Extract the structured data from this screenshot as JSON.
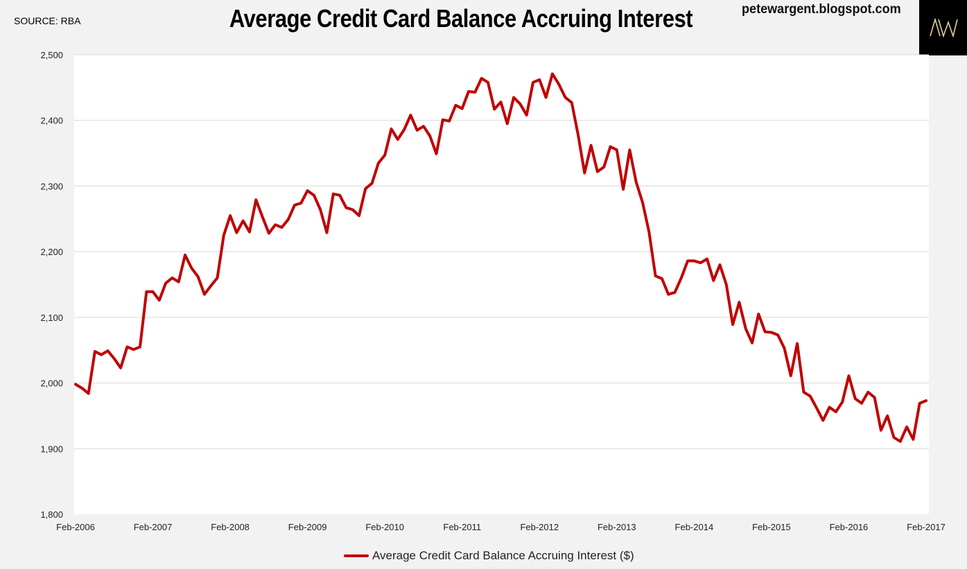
{
  "header": {
    "source": "SOURCE: RBA",
    "title": "Average Credit Card Balance Accruing Interest",
    "blog": "petewargent.blogspot.com",
    "logo_text": "AW"
  },
  "colors": {
    "series": "#c00000",
    "gridline": "#d9d9d9",
    "plot_bg": "#ffffff",
    "page_bg": "#f2f2f2",
    "logo_bg": "#000000",
    "logo_fg": "#e6cf96"
  },
  "chart_data": {
    "type": "line",
    "title": "Average Credit Card Balance Accruing Interest",
    "xlabel": "",
    "ylabel": "",
    "ylim": [
      1800,
      2500
    ],
    "y_ticks": [
      1800,
      1900,
      2000,
      2100,
      2200,
      2300,
      2400,
      2500
    ],
    "y_tick_labels": [
      "1,800",
      "1,900",
      "2,000",
      "2,100",
      "2,200",
      "2,300",
      "2,400",
      "2,500"
    ],
    "x_tick_labels": [
      "Feb-2006",
      "Feb-2007",
      "Feb-2008",
      "Feb-2009",
      "Feb-2010",
      "Feb-2011",
      "Feb-2012",
      "Feb-2013",
      "Feb-2014",
      "Feb-2015",
      "Feb-2016",
      "Feb-2017"
    ],
    "x_start": "Feb-2006",
    "x_end": "Feb-2017",
    "grid": "horizontal",
    "legend_position": "bottom",
    "series": [
      {
        "name": "Average Credit Card Balance Accruing Interest ($)",
        "frequency": "monthly",
        "values": [
          1998,
          1992,
          1984,
          2048,
          2043,
          2049,
          2037,
          2023,
          2055,
          2051,
          2055,
          2139,
          2139,
          2126,
          2152,
          2160,
          2154,
          2195,
          2175,
          2162,
          2135,
          2148,
          2160,
          2225,
          2255,
          2229,
          2247,
          2230,
          2279,
          2253,
          2228,
          2241,
          2237,
          2249,
          2271,
          2274,
          2293,
          2286,
          2264,
          2229,
          2288,
          2286,
          2267,
          2264,
          2255,
          2296,
          2304,
          2335,
          2347,
          2387,
          2371,
          2386,
          2408,
          2385,
          2391,
          2376,
          2349,
          2401,
          2399,
          2423,
          2418,
          2444,
          2443,
          2464,
          2458,
          2417,
          2428,
          2395,
          2435,
          2425,
          2408,
          2458,
          2462,
          2435,
          2471,
          2455,
          2435,
          2427,
          2378,
          2320,
          2362,
          2322,
          2329,
          2360,
          2355,
          2295,
          2355,
          2306,
          2275,
          2230,
          2163,
          2159,
          2135,
          2138,
          2160,
          2186,
          2186,
          2183,
          2189,
          2156,
          2180,
          2150,
          2089,
          2123,
          2083,
          2061,
          2105,
          2078,
          2077,
          2073,
          2053,
          2011,
          2060,
          1986,
          1980,
          1962,
          1943,
          1963,
          1956,
          1971,
          2011,
          1976,
          1969,
          1986,
          1978,
          1928,
          1950,
          1917,
          1911,
          1933,
          1914,
          1969,
          1973
        ]
      }
    ]
  },
  "legend": {
    "label": "Average Credit Card Balance Accruing Interest ($)"
  }
}
